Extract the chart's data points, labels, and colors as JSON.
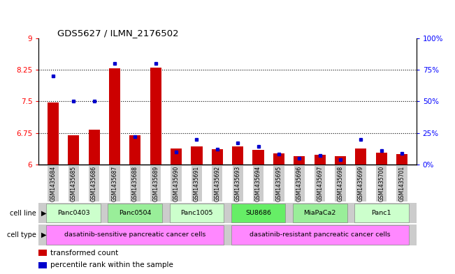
{
  "title": "GDS5627 / ILMN_2176502",
  "samples": [
    "GSM1435684",
    "GSM1435685",
    "GSM1435686",
    "GSM1435687",
    "GSM1435688",
    "GSM1435689",
    "GSM1435690",
    "GSM1435691",
    "GSM1435692",
    "GSM1435693",
    "GSM1435694",
    "GSM1435695",
    "GSM1435696",
    "GSM1435697",
    "GSM1435698",
    "GSM1435699",
    "GSM1435700",
    "GSM1435701"
  ],
  "red_values": [
    7.47,
    6.7,
    6.83,
    8.29,
    6.7,
    8.3,
    6.38,
    6.43,
    6.37,
    6.42,
    6.35,
    6.27,
    6.2,
    6.23,
    6.2,
    6.38,
    6.28,
    6.25
  ],
  "blue_pct": [
    70,
    50,
    50,
    80,
    22,
    80,
    10,
    20,
    12,
    17,
    14,
    8,
    5,
    7,
    4,
    20,
    11,
    9
  ],
  "ylim_left": [
    6,
    9
  ],
  "ylim_right": [
    0,
    100
  ],
  "yticks_left": [
    6,
    6.75,
    7.5,
    8.25,
    9
  ],
  "yticks_right": [
    0,
    25,
    50,
    75,
    100
  ],
  "ytick_labels_left": [
    "6",
    "6.75",
    "7.5",
    "8.25",
    "9"
  ],
  "ytick_labels_right": [
    "0%",
    "25%",
    "50%",
    "75%",
    "100%"
  ],
  "cell_lines": [
    {
      "label": "Panc0403",
      "start": 0,
      "end": 2,
      "color": "#ccffcc"
    },
    {
      "label": "Panc0504",
      "start": 3,
      "end": 5,
      "color": "#99ee99"
    },
    {
      "label": "Panc1005",
      "start": 6,
      "end": 8,
      "color": "#ccffcc"
    },
    {
      "label": "SU8686",
      "start": 9,
      "end": 11,
      "color": "#66ee66"
    },
    {
      "label": "MiaPaCa2",
      "start": 12,
      "end": 14,
      "color": "#99ee99"
    },
    {
      "label": "Panc1",
      "start": 15,
      "end": 17,
      "color": "#ccffcc"
    }
  ],
  "cell_types": [
    {
      "label": "dasatinib-sensitive pancreatic cancer cells",
      "start": 0,
      "end": 8,
      "color": "#ff88ff"
    },
    {
      "label": "dasatinib-resistant pancreatic cancer cells",
      "start": 9,
      "end": 17,
      "color": "#ff88ff"
    }
  ],
  "bar_color": "#cc0000",
  "dot_color": "#0000cc",
  "bg_color": "#ffffff",
  "bar_width": 0.55,
  "sample_bg_color": "#cccccc",
  "legend_items": [
    {
      "color": "#cc0000",
      "label": "transformed count"
    },
    {
      "color": "#0000cc",
      "label": "percentile rank within the sample"
    }
  ]
}
